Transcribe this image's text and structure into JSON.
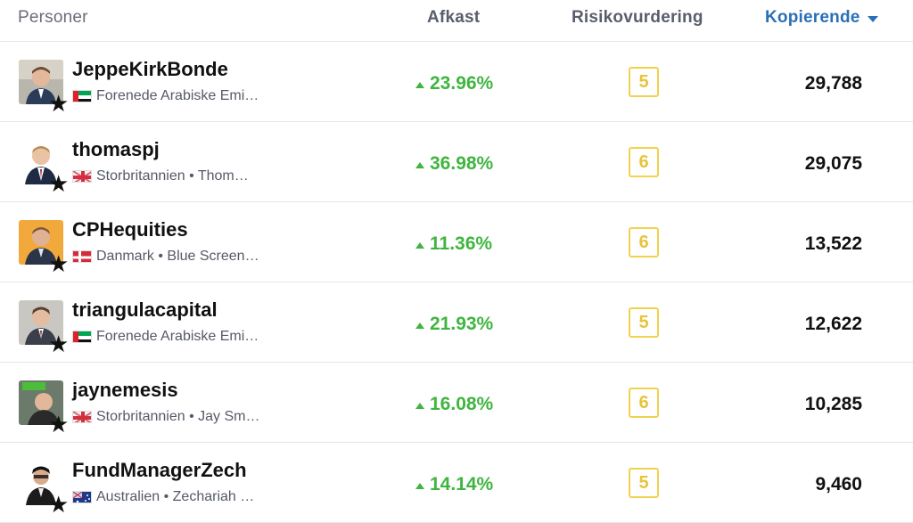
{
  "header": {
    "people": "Personer",
    "return": "Afkast",
    "risk": "Risikovurdering",
    "copiers": "Kopierende"
  },
  "rows": [
    {
      "name": "JeppeKirkBonde",
      "subtitle": "Forenede Arabiske Emi…",
      "flag": "uae-flag-icon",
      "return": "23.96%",
      "risk": "5",
      "copiers": "29,788"
    },
    {
      "name": "thomaspj",
      "subtitle": "Storbritannien • Thom…",
      "flag": "uk-flag-icon",
      "return": "36.98%",
      "risk": "6",
      "copiers": "29,075"
    },
    {
      "name": "CPHequities",
      "subtitle": "Danmark • Blue Screen…",
      "flag": "denmark-flag-icon",
      "return": "11.36%",
      "risk": "6",
      "copiers": "13,522"
    },
    {
      "name": "triangulacapital",
      "subtitle": "Forenede Arabiske Emi…",
      "flag": "uae-flag-icon",
      "return": "21.93%",
      "risk": "5",
      "copiers": "12,622"
    },
    {
      "name": "jaynemesis",
      "subtitle": "Storbritannien • Jay Sm…",
      "flag": "uk-flag-icon",
      "return": "16.08%",
      "risk": "6",
      "copiers": "10,285"
    },
    {
      "name": "FundManagerZech",
      "subtitle": "Australien • Zechariah …",
      "flag": "australia-flag-icon",
      "return": "14.14%",
      "risk": "5",
      "copiers": "9,460"
    }
  ],
  "colors": {
    "accent": "#2a6fb8",
    "gain": "#3fb53f",
    "risk": "#f0d24f"
  }
}
